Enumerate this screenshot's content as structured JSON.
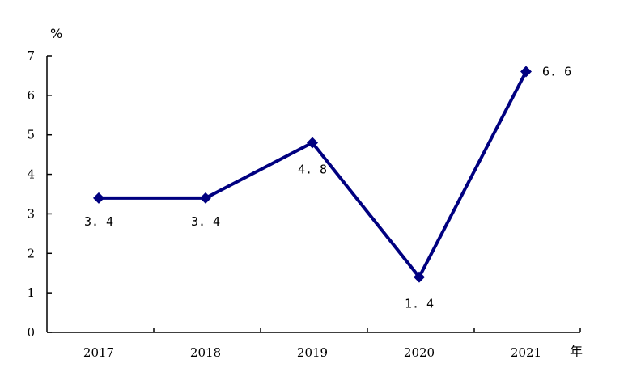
{
  "chart_data": {
    "type": "line",
    "title": "",
    "ylabel": "%",
    "xlabel": "年",
    "ylim": [
      0,
      7
    ],
    "yticks": [
      "0",
      "1",
      "2",
      "3",
      "4",
      "5",
      "6",
      "7"
    ],
    "categories": [
      "2017",
      "2018",
      "2019",
      "2020",
      "2021"
    ],
    "series": [
      {
        "values": [
          3.4,
          3.4,
          4.8,
          1.4,
          6.6
        ],
        "labels": [
          "3. 4",
          "3. 4",
          "4. 8",
          "1. 4",
          "6. 6"
        ],
        "color": "#000080"
      }
    ],
    "grid": false,
    "legend": "none"
  }
}
